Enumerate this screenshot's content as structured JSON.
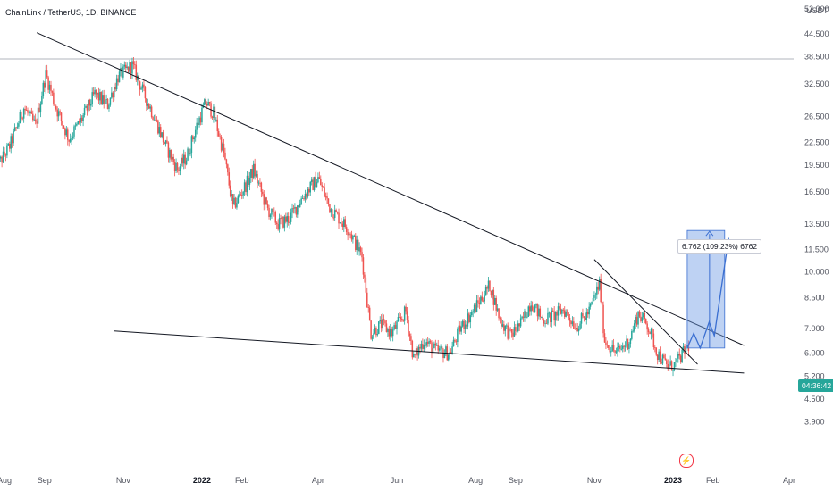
{
  "header": {
    "title": "ChainLink / TetherUS, 1D, BINANCE"
  },
  "axis": {
    "unit": "USDT"
  },
  "price_tag": "04:36:42",
  "measure_label": "6.762 (109.23%) 6762",
  "colors": {
    "up": "#26a69a",
    "down": "#ef5350",
    "line": "#131722",
    "projection": "#3b6fd1",
    "box_fill": "#6f9be5"
  },
  "chart_data": {
    "type": "candlestick",
    "title": "ChainLink / TetherUS, 1D, BINANCE",
    "y_scale": "log",
    "ylim": [
      3.7,
      60
    ],
    "y_ticks": [
      52.0,
      44.5,
      38.5,
      32.5,
      26.5,
      22.5,
      19.5,
      16.5,
      13.5,
      11.5,
      10.0,
      8.5,
      7.0,
      6.0,
      5.2,
      4.5,
      3.9
    ],
    "y_tick_labels": [
      "52.000",
      "44.500",
      "38.500",
      "32.500",
      "26.500",
      "22.500",
      "19.500",
      "16.500",
      "13.500",
      "11.500",
      "10.000",
      "8.500",
      "7.000",
      "6.000",
      "5.200",
      "4.500",
      "3.900"
    ],
    "x_ticks": [
      {
        "date": "2021-08-01",
        "label": "Aug",
        "major": false
      },
      {
        "date": "2021-09-01",
        "label": "Sep",
        "major": false
      },
      {
        "date": "2021-11-01",
        "label": "Nov",
        "major": false
      },
      {
        "date": "2022-01-01",
        "label": "2022",
        "major": true
      },
      {
        "date": "2022-02-01",
        "label": "Feb",
        "major": false
      },
      {
        "date": "2022-04-01",
        "label": "Apr",
        "major": false
      },
      {
        "date": "2022-06-01",
        "label": "Jun",
        "major": false
      },
      {
        "date": "2022-08-01",
        "label": "Aug",
        "major": false
      },
      {
        "date": "2022-09-01",
        "label": "Sep",
        "major": false
      },
      {
        "date": "2022-11-01",
        "label": "Nov",
        "major": false
      },
      {
        "date": "2023-01-01",
        "label": "2023",
        "major": true
      },
      {
        "date": "2023-02-01",
        "label": "Feb",
        "major": false
      },
      {
        "date": "2023-04-01",
        "label": "Apr",
        "major": false
      }
    ],
    "horizontal_line": 38.0,
    "trend_lines": [
      {
        "from": [
          "2021-08-26",
          44.8
        ],
        "to": [
          "2023-02-25",
          6.3
        ]
      },
      {
        "from": [
          "2021-10-25",
          6.9
        ],
        "to": [
          "2023-02-25",
          5.3
        ]
      },
      {
        "from": [
          "2022-11-01",
          10.8
        ],
        "to": [
          "2023-01-20",
          5.6
        ]
      }
    ],
    "measure_box": {
      "from_date": "2023-01-12",
      "to_date": "2023-02-10",
      "low": 6.2,
      "high": 12.96,
      "change": "6.762 (109.23%) 6762"
    },
    "projection_path": [
      [
        "2023-01-12",
        6.2
      ],
      [
        "2023-01-17",
        6.8
      ],
      [
        "2023-01-22",
        6.2
      ],
      [
        "2023-01-29",
        7.3
      ],
      [
        "2023-02-02",
        6.7
      ],
      [
        "2023-02-13",
        12.3
      ]
    ],
    "price_anchors": [
      [
        "2021-07-25",
        19.0
      ],
      [
        "2021-08-05",
        22.0
      ],
      [
        "2021-08-16",
        28.0
      ],
      [
        "2021-08-25",
        25.0
      ],
      [
        "2021-09-02",
        34.5
      ],
      [
        "2021-09-10",
        28.0
      ],
      [
        "2021-09-20",
        23.0
      ],
      [
        "2021-10-01",
        26.5
      ],
      [
        "2021-10-10",
        30.5
      ],
      [
        "2021-10-20",
        28.5
      ],
      [
        "2021-10-28",
        34.0
      ],
      [
        "2021-11-08",
        36.5
      ],
      [
        "2021-11-18",
        30.0
      ],
      [
        "2021-11-25",
        26.5
      ],
      [
        "2021-12-04",
        22.0
      ],
      [
        "2021-12-13",
        19.0
      ],
      [
        "2021-12-20",
        20.5
      ],
      [
        "2021-12-28",
        25.0
      ],
      [
        "2022-01-04",
        29.0
      ],
      [
        "2022-01-10",
        27.0
      ],
      [
        "2022-01-18",
        21.0
      ],
      [
        "2022-01-25",
        15.0
      ],
      [
        "2022-02-05",
        17.5
      ],
      [
        "2022-02-10",
        19.0
      ],
      [
        "2022-02-20",
        15.0
      ],
      [
        "2022-03-01",
        13.5
      ],
      [
        "2022-03-10",
        14.0
      ],
      [
        "2022-03-20",
        16.0
      ],
      [
        "2022-04-01",
        18.0
      ],
      [
        "2022-04-10",
        15.0
      ],
      [
        "2022-04-25",
        13.0
      ],
      [
        "2022-05-05",
        11.0
      ],
      [
        "2022-05-12",
        6.8
      ],
      [
        "2022-05-20",
        7.2
      ],
      [
        "2022-05-28",
        6.8
      ],
      [
        "2022-06-08",
        7.8
      ],
      [
        "2022-06-14",
        5.8
      ],
      [
        "2022-06-22",
        6.5
      ],
      [
        "2022-07-01",
        6.1
      ],
      [
        "2022-07-12",
        6.0
      ],
      [
        "2022-07-20",
        7.0
      ],
      [
        "2022-08-01",
        8.0
      ],
      [
        "2022-08-12",
        9.2
      ],
      [
        "2022-08-20",
        7.4
      ],
      [
        "2022-08-28",
        6.7
      ],
      [
        "2022-09-05",
        7.2
      ],
      [
        "2022-09-13",
        8.3
      ],
      [
        "2022-09-22",
        7.4
      ],
      [
        "2022-10-01",
        7.6
      ],
      [
        "2022-10-08",
        7.9
      ],
      [
        "2022-10-18",
        7.1
      ],
      [
        "2022-10-28",
        7.8
      ],
      [
        "2022-11-05",
        9.3
      ],
      [
        "2022-11-09",
        6.5
      ],
      [
        "2022-11-18",
        6.0
      ],
      [
        "2022-11-28",
        6.5
      ],
      [
        "2022-12-05",
        7.7
      ],
      [
        "2022-12-12",
        7.2
      ],
      [
        "2022-12-20",
        6.0
      ],
      [
        "2022-12-28",
        5.5
      ],
      [
        "2023-01-03",
        5.6
      ],
      [
        "2023-01-09",
        6.0
      ],
      [
        "2023-01-13",
        6.3
      ]
    ]
  }
}
